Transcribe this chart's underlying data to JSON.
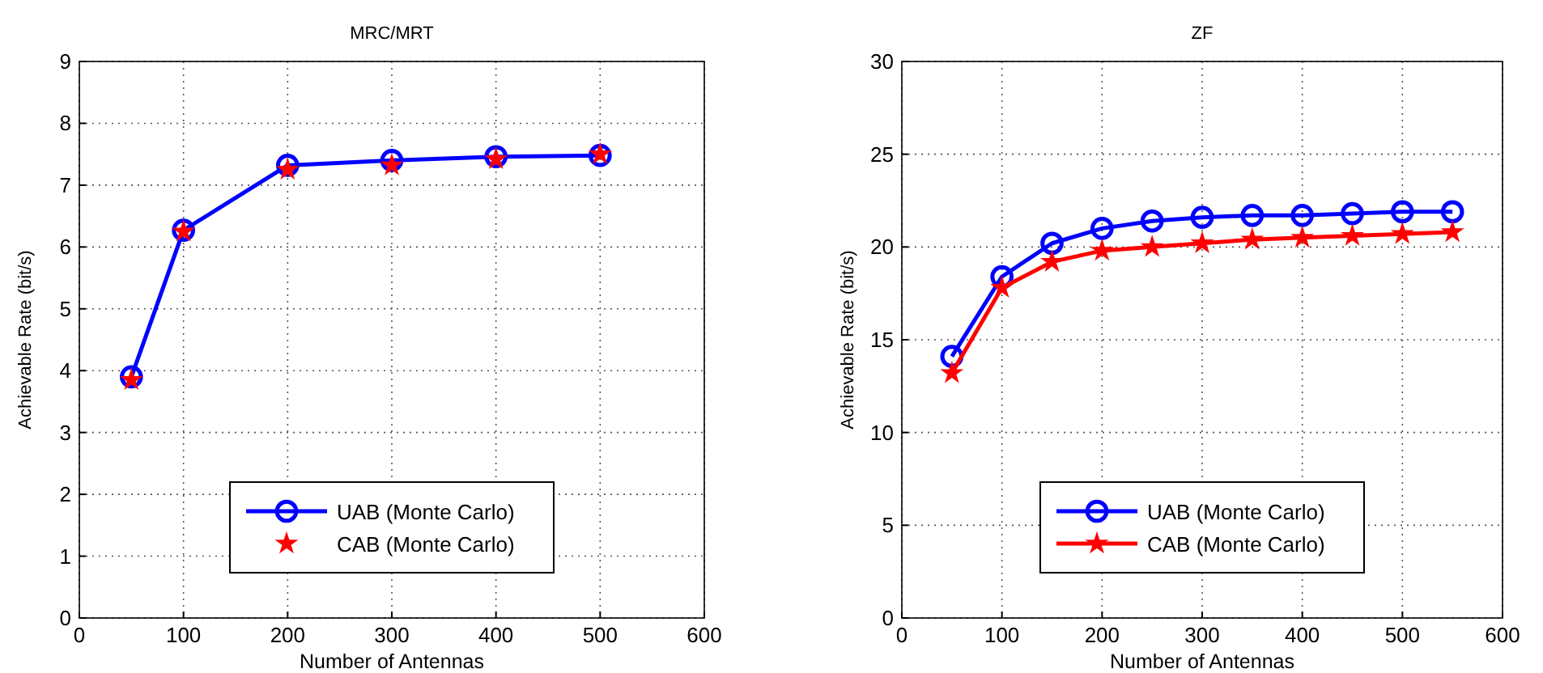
{
  "chart_data": [
    {
      "type": "line",
      "title": "MRC/MRT",
      "xlabel": "Number of Antennas",
      "ylabel": "Achievable Rate (bit/s)",
      "xlim": [
        0,
        600
      ],
      "xticks": [
        0,
        100,
        200,
        300,
        400,
        500,
        600
      ],
      "ylim": [
        0,
        9
      ],
      "yticks": [
        0,
        1,
        2,
        3,
        4,
        5,
        6,
        7,
        8,
        9
      ],
      "grid": true,
      "legend": "bottom",
      "x": [
        50,
        100,
        200,
        300,
        400,
        500
      ],
      "series": [
        {
          "name": "UAB (Monte Carlo)",
          "color": "#0000ff",
          "marker": "circle",
          "line_style": "solid",
          "values": [
            3.9,
            6.27,
            7.32,
            7.4,
            7.46,
            7.48
          ]
        },
        {
          "name": "CAB (Monte Carlo)",
          "color": "#ff0000",
          "type": "scatter",
          "marker": "star",
          "values": [
            3.85,
            6.25,
            7.25,
            7.32,
            7.42,
            7.5
          ]
        }
      ]
    },
    {
      "type": "line",
      "title": "ZF",
      "xlabel": "Number of Antennas",
      "ylabel": "Achievable Rate (bit/s)",
      "xlim": [
        0,
        600
      ],
      "xticks": [
        0,
        100,
        200,
        300,
        400,
        500,
        600
      ],
      "ylim": [
        0,
        30
      ],
      "yticks": [
        0,
        5,
        10,
        15,
        20,
        25,
        30
      ],
      "grid": true,
      "legend": "bottom",
      "x": [
        50,
        100,
        150,
        200,
        250,
        300,
        350,
        400,
        450,
        500,
        550
      ],
      "series": [
        {
          "name": "UAB (Monte Carlo)",
          "color": "#0000ff",
          "marker": "circle",
          "line_style": "solid",
          "values": [
            14.1,
            18.4,
            20.2,
            21.0,
            21.4,
            21.6,
            21.7,
            21.7,
            21.8,
            21.9,
            21.9
          ]
        },
        {
          "name": "CAB (Monte Carlo)",
          "color": "#ff0000",
          "marker": "star",
          "line_style": "solid",
          "values": [
            13.2,
            17.8,
            19.2,
            19.8,
            20.0,
            20.2,
            20.4,
            20.5,
            20.6,
            20.7,
            20.8
          ]
        }
      ]
    }
  ]
}
